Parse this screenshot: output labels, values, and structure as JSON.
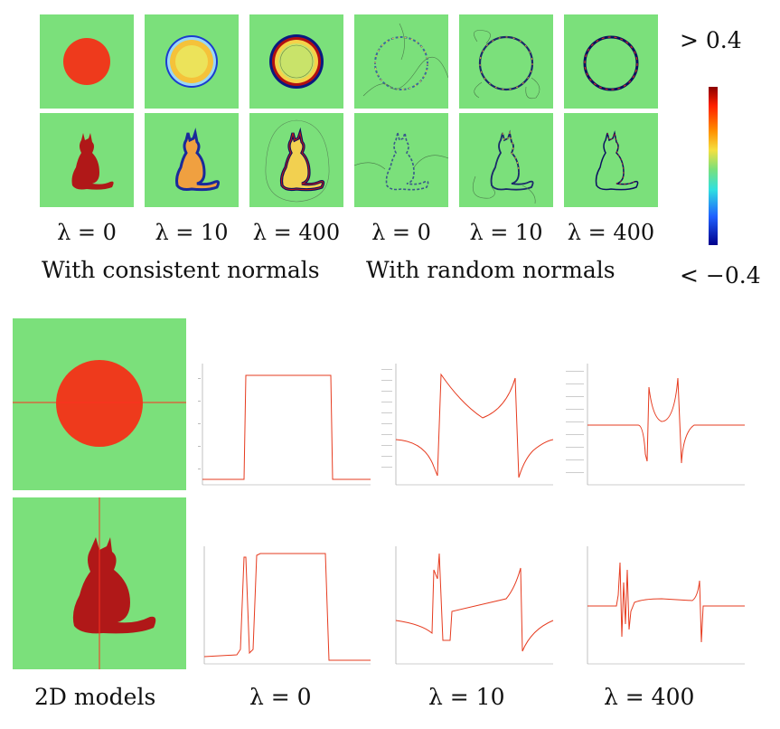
{
  "top_panel": {
    "lambda_labels": [
      "λ = 0",
      "λ = 10",
      "λ = 400",
      "λ = 0",
      "λ = 10",
      "λ = 400"
    ],
    "group_labels": [
      "With consistent normals",
      "With random normals"
    ],
    "colorbar": {
      "max_label": "> 0.4",
      "min_label": "< −0.4",
      "top_color": "#8b0000",
      "bottom_color": "#00008b"
    }
  },
  "bottom_panel": {
    "column_labels": [
      "2D models",
      "λ = 0",
      "λ = 10",
      "λ = 400"
    ],
    "line_color": "#e63b1f"
  },
  "colors": {
    "background_field": "#7be07b",
    "shape_fill": "#ee3a1c",
    "cat_fill": "#b01818"
  }
}
